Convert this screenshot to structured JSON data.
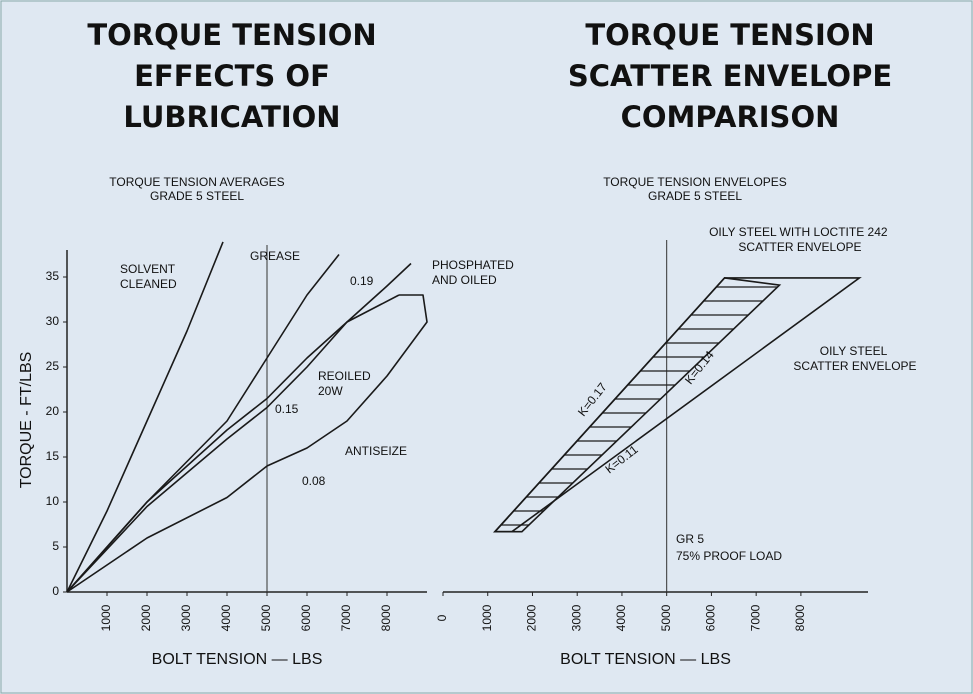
{
  "chart_data": [
    {
      "type": "line",
      "title": [
        "TORQUE TENSION",
        "EFFECTS OF",
        "LUBRICATION"
      ],
      "subtitle": [
        "TORQUE TENSION AVERAGES",
        "GRADE 5 STEEL"
      ],
      "x_label": "BOLT TENSION — LBS",
      "y_label": "TORQUE - FT/LBS",
      "xlim": [
        0,
        9000
      ],
      "ylim": [
        0,
        38
      ],
      "xticks": [
        1000,
        2000,
        3000,
        4000,
        5000,
        6000,
        7000,
        8000
      ],
      "yticks": [
        0,
        5,
        10,
        15,
        20,
        25,
        30,
        35
      ],
      "reference_x": 5000,
      "color": "#1a1a1a",
      "series": [
        {
          "name": "SOLVENT CLEANED",
          "x": [
            0,
            1000,
            2000,
            3000,
            3900
          ],
          "values": [
            0,
            9,
            19,
            29,
            38.9
          ]
        },
        {
          "name": "GREASE",
          "x": [
            0,
            2000,
            4000,
            5000,
            6000,
            6800
          ],
          "values": [
            0,
            10,
            19,
            26,
            33,
            37.5
          ]
        },
        {
          "name": "PHOSPHATED AND OILED",
          "x": [
            0,
            2000,
            4000,
            5000,
            6000,
            7000,
            8000,
            8600
          ],
          "values": [
            0,
            9.5,
            17,
            20.5,
            25,
            30,
            34,
            36.5
          ]
        },
        {
          "name": "REOILED 20W",
          "x": [
            0,
            2000,
            4000,
            5000,
            6000,
            7000,
            8300
          ],
          "values": [
            0,
            10,
            18,
            21.5,
            26,
            30,
            33
          ]
        },
        {
          "name": "ANTISEIZE",
          "x": [
            0,
            2000,
            4000,
            5000,
            6000,
            7000,
            8000,
            9000,
            8900,
            8300
          ],
          "values": [
            0,
            6,
            10.5,
            14,
            16,
            19,
            24,
            30,
            33,
            33
          ]
        }
      ],
      "annotations": [
        "0.19",
        "0.15",
        "0.08"
      ]
    },
    {
      "type": "envelope",
      "title": [
        "TORQUE TENSION",
        "SCATTER ENVELOPE",
        "COMPARISON"
      ],
      "subtitle": [
        "TORQUE TENSION ENVELOPES",
        "GRADE 5 STEEL"
      ],
      "x_label": "BOLT TENSION — LBS",
      "xlim": [
        0,
        9500
      ],
      "ylim": [
        0,
        38
      ],
      "xticks": [
        0,
        1000,
        2000,
        3000,
        4000,
        5000,
        6000,
        7000,
        8000
      ],
      "reference_x": 5000,
      "color": "#1a1a1a",
      "series": [
        {
          "name": "OILY STEEL WITH LOCTITE 242 SCATTER ENVELOPE",
          "hatch": true,
          "x": [
            1160,
            6295,
            7522,
            1763
          ],
          "values": [
            6.7,
            34.9,
            34.1,
            6.7
          ]
        },
        {
          "name": "OILY STEEL SCATTER ENVELOPE",
          "hatch": false,
          "x": [
            1160,
            6295,
            9308,
            1540
          ],
          "values": [
            6.7,
            34.9,
            34.9,
            6.7
          ]
        }
      ],
      "annotations": [
        "K=0.17",
        "K=0.14",
        "K=0.11",
        "GR 5",
        "75% PROOF LOAD"
      ]
    }
  ]
}
